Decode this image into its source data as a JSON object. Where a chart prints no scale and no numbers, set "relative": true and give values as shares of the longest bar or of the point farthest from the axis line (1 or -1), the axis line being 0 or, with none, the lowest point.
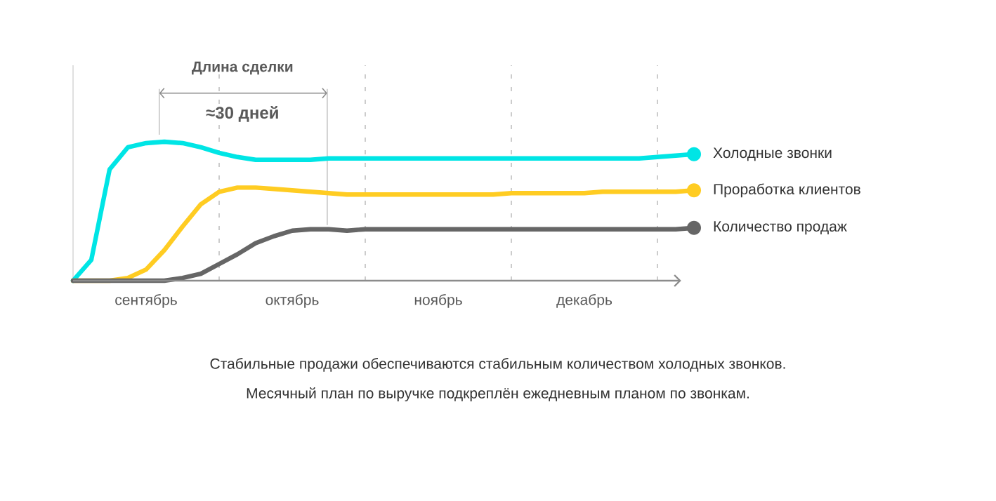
{
  "chart_data": {
    "type": "line",
    "relative": true,
    "legend": "right",
    "marker": "none",
    "line_style": "solid",
    "categories": [
      null,
      null,
      null,
      null,
      "сентябрь",
      null,
      null,
      null,
      null,
      null,
      null,
      null,
      "октябрь",
      null,
      null,
      null,
      null,
      null,
      null,
      null,
      "ноябрь",
      null,
      null,
      null,
      null,
      null,
      null,
      null,
      "декабрь",
      null,
      null,
      null,
      null,
      null,
      null
    ],
    "grid": "x",
    "series": [
      {
        "name": "Холодные звонки",
        "color": "#00e5e5",
        "values": [
          0,
          0.15,
          0.8,
          0.96,
          0.99,
          1.0,
          0.99,
          0.96,
          0.92,
          0.89,
          0.87,
          0.87,
          0.87,
          0.87,
          0.88,
          0.88,
          0.88,
          0.88,
          0.88,
          0.88,
          0.88,
          0.88,
          0.88,
          0.88,
          0.88,
          0.88,
          0.88,
          0.88,
          0.88,
          0.88,
          0.88,
          0.88,
          0.89,
          0.9,
          0.91
        ]
      },
      {
        "name": "Проработка клиентов",
        "color": "#ffcc22",
        "values": [
          0,
          0,
          0,
          0.02,
          0.08,
          0.22,
          0.39,
          0.55,
          0.64,
          0.67,
          0.67,
          0.66,
          0.65,
          0.64,
          0.63,
          0.62,
          0.62,
          0.62,
          0.62,
          0.62,
          0.62,
          0.62,
          0.62,
          0.62,
          0.63,
          0.63,
          0.63,
          0.63,
          0.63,
          0.64,
          0.64,
          0.64,
          0.64,
          0.64,
          0.65
        ]
      },
      {
        "name": "Количество продаж",
        "color": "#666666",
        "values": [
          0,
          0,
          0,
          0,
          0,
          0,
          0.02,
          0.05,
          0.12,
          0.19,
          0.27,
          0.32,
          0.36,
          0.37,
          0.37,
          0.36,
          0.37,
          0.37,
          0.37,
          0.37,
          0.37,
          0.37,
          0.37,
          0.37,
          0.37,
          0.37,
          0.37,
          0.37,
          0.37,
          0.37,
          0.37,
          0.37,
          0.37,
          0.37,
          0.38
        ]
      }
    ],
    "annotations": [
      "Длина сделки",
      "≈30 дней",
      "Стабильные продажи обеспечиваются стабильным количеством холодных звонков.",
      "Месячный план по выручке подкреплён ежедневным планом по звонкам."
    ]
  }
}
